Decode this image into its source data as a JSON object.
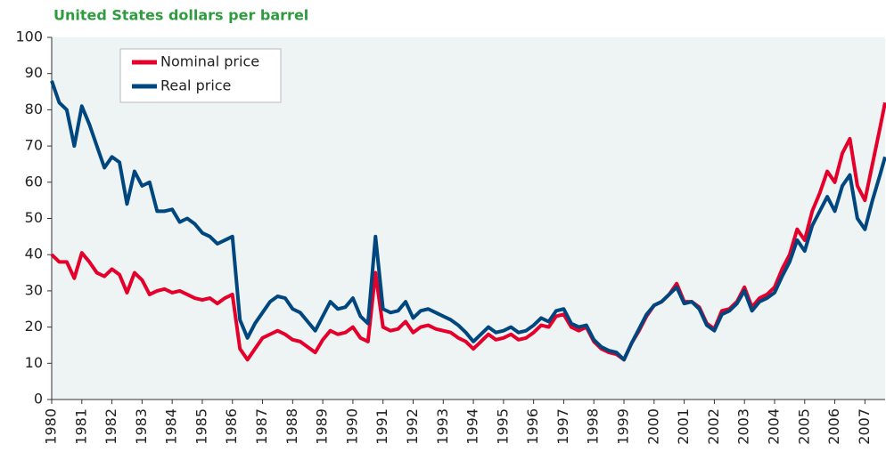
{
  "chart_data": {
    "type": "line",
    "title": "United States dollars per barrel",
    "x": [
      1980,
      1980.25,
      1980.5,
      1980.75,
      1981,
      1981.25,
      1981.5,
      1981.75,
      1982,
      1982.25,
      1982.5,
      1982.75,
      1983,
      1983.25,
      1983.5,
      1983.75,
      1984,
      1984.25,
      1984.5,
      1984.75,
      1985,
      1985.25,
      1985.5,
      1985.75,
      1986,
      1986.25,
      1986.5,
      1986.75,
      1987,
      1987.25,
      1987.5,
      1987.75,
      1988,
      1988.25,
      1988.5,
      1988.75,
      1989,
      1989.25,
      1989.5,
      1989.75,
      1990,
      1990.25,
      1990.5,
      1990.75,
      1991,
      1991.25,
      1991.5,
      1991.75,
      1992,
      1992.25,
      1992.5,
      1992.75,
      1993,
      1993.25,
      1993.5,
      1993.75,
      1994,
      1994.25,
      1994.5,
      1994.75,
      1995,
      1995.25,
      1995.5,
      1995.75,
      1996,
      1996.25,
      1996.5,
      1996.75,
      1997,
      1997.25,
      1997.5,
      1997.75,
      1998,
      1998.25,
      1998.5,
      1998.75,
      1999,
      1999.25,
      1999.5,
      1999.75,
      2000,
      2000.25,
      2000.5,
      2000.75,
      2001,
      2001.25,
      2001.5,
      2001.75,
      2002,
      2002.25,
      2002.5,
      2002.75,
      2003,
      2003.25,
      2003.5,
      2003.75,
      2004,
      2004.25,
      2004.5,
      2004.75,
      2005,
      2005.25,
      2005.5,
      2005.75,
      2006,
      2006.25,
      2006.5,
      2006.75,
      2007,
      2007.25,
      2007.5,
      2007.67
    ],
    "series": [
      {
        "name": "Nominal price",
        "color": "#e4002b",
        "values": [
          40,
          38,
          38,
          33.5,
          40.5,
          38,
          35,
          34,
          36,
          34.5,
          29.5,
          35,
          33,
          29,
          30,
          30.5,
          29.5,
          30,
          29,
          28,
          27.5,
          28,
          26.5,
          28,
          29,
          14,
          11,
          14,
          17,
          18,
          19,
          18,
          16.5,
          16,
          14.5,
          13,
          16.5,
          19,
          18,
          18.5,
          20,
          17,
          16,
          35,
          20,
          19,
          19.5,
          21.5,
          18.5,
          20,
          20.5,
          19.5,
          19,
          18.5,
          17,
          16,
          14,
          16,
          18,
          16.5,
          17,
          18,
          16.5,
          17,
          18.5,
          20.5,
          20,
          23,
          23.5,
          20,
          19,
          20,
          16,
          14,
          13,
          12.5,
          11,
          15.5,
          19,
          23,
          26,
          27,
          29,
          32,
          27,
          27,
          25.5,
          21,
          19.5,
          24.5,
          25,
          27,
          31,
          25.5,
          28,
          29,
          31,
          36,
          40,
          47,
          44,
          52,
          57,
          63,
          60,
          68,
          72,
          59,
          55,
          65,
          75,
          82
        ]
      },
      {
        "name": "Real price",
        "color": "#00477f",
        "values": [
          88,
          82,
          80,
          70,
          81,
          76,
          70,
          64,
          67,
          65.5,
          54,
          63,
          59,
          60,
          52,
          52,
          52.5,
          49,
          50,
          48.5,
          46,
          45,
          43,
          44,
          45,
          22,
          17,
          21,
          24,
          27,
          28.5,
          28,
          25,
          24,
          21.5,
          19,
          23,
          27,
          25,
          25.5,
          28,
          23,
          21,
          45,
          25,
          24,
          24.5,
          27,
          22.5,
          24.5,
          25,
          24,
          23,
          22,
          20.5,
          18.5,
          16,
          18,
          20,
          18.5,
          19,
          20,
          18.5,
          19,
          20.5,
          22.5,
          21.5,
          24.5,
          25,
          21,
          20,
          20.5,
          16.5,
          14.5,
          13.5,
          13,
          11,
          15.5,
          19.5,
          23.5,
          26,
          27,
          29,
          31,
          26.5,
          27,
          25,
          20.5,
          19,
          23.5,
          24.5,
          26.5,
          30,
          24.5,
          27,
          28,
          29.5,
          34,
          38,
          44,
          41,
          48,
          52,
          56,
          52,
          59,
          62,
          50,
          47,
          55,
          62,
          67
        ]
      }
    ],
    "xlim": [
      1980,
      2007.67
    ],
    "xticks": [
      1980,
      1981,
      1982,
      1983,
      1984,
      1985,
      1986,
      1987,
      1988,
      1989,
      1990,
      1991,
      1992,
      1993,
      1994,
      1995,
      1996,
      1997,
      1998,
      1999,
      2000,
      2001,
      2002,
      2003,
      2004,
      2005,
      2006,
      2007
    ],
    "ylim": [
      0,
      100
    ],
    "yticks": [
      0,
      10,
      20,
      30,
      40,
      50,
      60,
      70,
      80,
      90,
      100
    ],
    "legend": "upper left"
  }
}
